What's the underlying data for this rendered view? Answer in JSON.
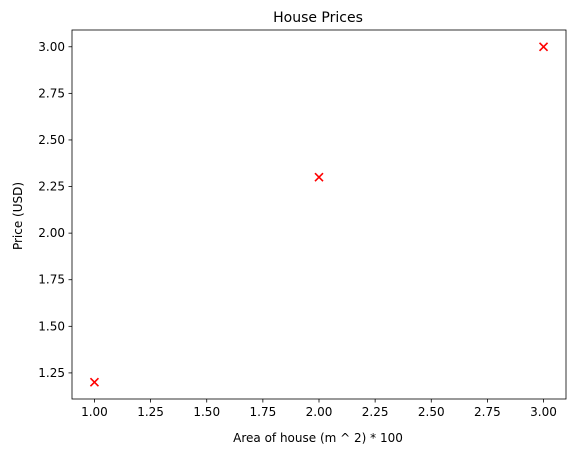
{
  "chart_data": {
    "type": "scatter",
    "title": "House Prices",
    "xlabel": "Area of house (m ^ 2) * 100",
    "ylabel": "Price (USD)",
    "x": [
      1.0,
      2.0,
      3.0
    ],
    "y": [
      1.2,
      2.3,
      3.0
    ],
    "xlim": [
      0.9,
      3.1
    ],
    "ylim": [
      1.11,
      3.09
    ],
    "xticks": [
      "1.00",
      "1.25",
      "1.50",
      "1.75",
      "2.00",
      "2.25",
      "2.50",
      "2.75",
      "3.00"
    ],
    "yticks": [
      "1.25",
      "1.50",
      "1.75",
      "2.00",
      "2.25",
      "2.50",
      "2.75",
      "3.00"
    ],
    "marker": "x",
    "marker_color": "#ff0000",
    "grid": false,
    "legend": "none"
  }
}
